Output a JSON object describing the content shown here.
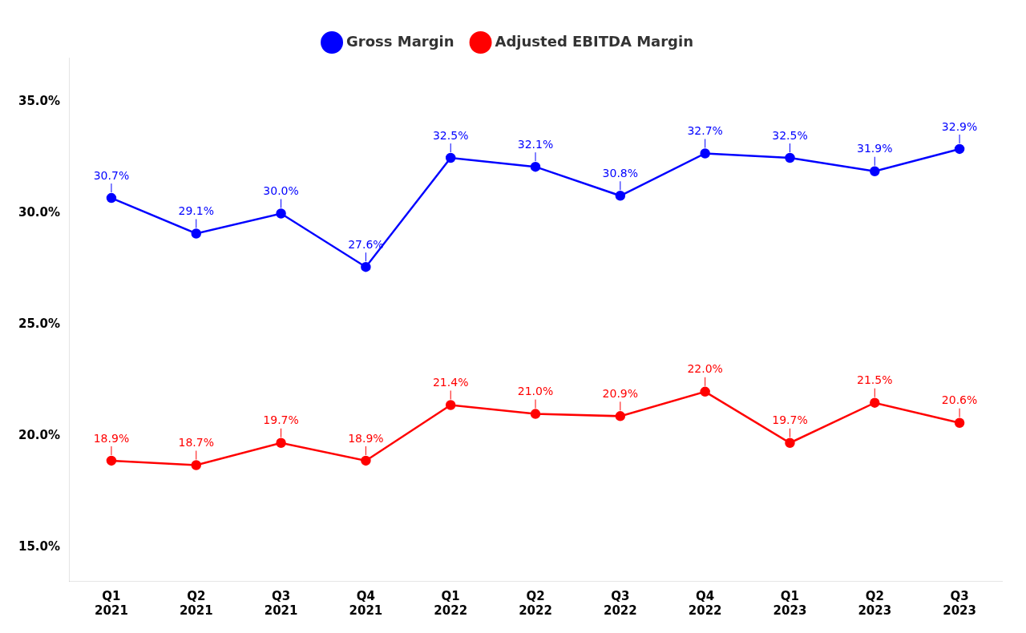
{
  "chart_data": {
    "type": "line",
    "categories": [
      "Q1\n2021",
      "Q2\n2021",
      "Q3\n2021",
      "Q4\n2021",
      "Q1\n2022",
      "Q2\n2022",
      "Q3\n2022",
      "Q4\n2022",
      "Q1\n2023",
      "Q2\n2023",
      "Q3\n2023"
    ],
    "series": [
      {
        "name": "Gross Margin",
        "color": "#0000ff",
        "marker": "circle",
        "values": [
          30.7,
          29.1,
          30.0,
          27.6,
          32.5,
          32.1,
          30.8,
          32.7,
          32.5,
          31.9,
          32.9
        ],
        "value_labels": [
          "30.7%",
          "29.1%",
          "30.0%",
          "27.6%",
          "32.5%",
          "32.1%",
          "30.8%",
          "32.7%",
          "32.5%",
          "31.9%",
          "32.9%"
        ]
      },
      {
        "name": "Adjusted EBITDA Margin",
        "color": "#ff0000",
        "marker": "circle",
        "values": [
          18.9,
          18.7,
          19.7,
          18.9,
          21.4,
          21.0,
          20.9,
          22.0,
          19.7,
          21.5,
          20.6
        ],
        "value_labels": [
          "18.9%",
          "18.7%",
          "19.7%",
          "18.9%",
          "21.4%",
          "21.0%",
          "20.9%",
          "22.0%",
          "19.7%",
          "21.5%",
          "20.6%"
        ]
      }
    ],
    "ylim": [
      13.5,
      37.0
    ],
    "yticks": [
      {
        "value": 15.0,
        "label": "15.0%"
      },
      {
        "value": 20.0,
        "label": "20.0%"
      },
      {
        "value": 25.0,
        "label": "25.0%"
      },
      {
        "value": 30.0,
        "label": "30.0%"
      },
      {
        "value": 35.0,
        "label": "35.0%"
      }
    ],
    "grid": false,
    "legend": "top",
    "data_labels": true
  }
}
